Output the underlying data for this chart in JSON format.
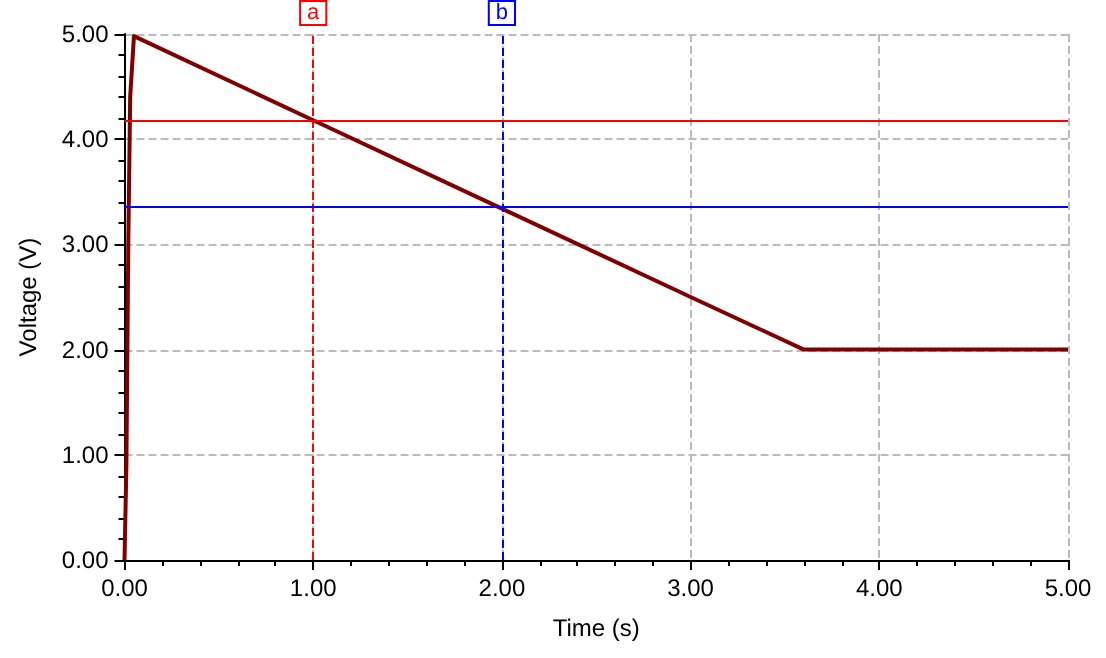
{
  "chart_data": {
    "type": "line",
    "xlabel": "Time (s)",
    "ylabel": "Voltage (V)",
    "x": [
      0,
      0.01,
      0.02,
      0.03,
      0.05,
      1.0,
      2.0,
      3.0,
      3.6,
      5.0
    ],
    "series": [
      {
        "color": "#800000",
        "values": [
          0,
          0.9,
          3.0,
          4.4,
          4.98,
          4.18,
          3.34,
          2.5,
          2.0,
          2.0
        ]
      }
    ],
    "xlim": [
      0,
      5
    ],
    "xticks": [
      {
        "value": 0,
        "label": "0.00"
      },
      {
        "value": 1,
        "label": "1.00"
      },
      {
        "value": 2,
        "label": "2.00"
      },
      {
        "value": 3,
        "label": "3.00"
      },
      {
        "value": 4,
        "label": "4.00"
      },
      {
        "value": 5,
        "label": "5.00"
      }
    ],
    "ylim": [
      0,
      5
    ],
    "yticks": [
      {
        "value": 0,
        "label": "0.00"
      },
      {
        "value": 1,
        "label": "1.00"
      },
      {
        "value": 2,
        "label": "2.00"
      },
      {
        "value": 3,
        "label": "3.00"
      },
      {
        "value": 4,
        "label": "4.00"
      },
      {
        "value": 5,
        "label": "5.00"
      }
    ],
    "ref_lines": [
      {
        "axis": "x",
        "value": 1,
        "label": "a",
        "color": "#ff0000",
        "line_style": "dashed"
      },
      {
        "axis": "x",
        "value": 2,
        "label": "b",
        "color": "#0000ff",
        "line_style": "dashed"
      },
      {
        "axis": "y",
        "value": 4.18,
        "color": "#ff0000",
        "line_style": "solid"
      },
      {
        "axis": "y",
        "value": 3.36,
        "color": "#0000ff",
        "line_style": "solid"
      }
    ],
    "grid": true,
    "marker": "none",
    "line_style": "solid"
  }
}
